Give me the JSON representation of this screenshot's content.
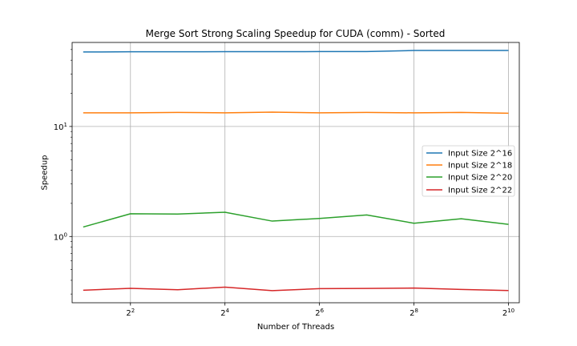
{
  "chart_data": {
    "type": "line",
    "title": "Merge Sort Strong Scaling Speedup for CUDA (comm) - Sorted",
    "xlabel": "Number of Threads",
    "ylabel": "Speedup",
    "x_scale": "log2",
    "y_scale": "log10",
    "x": [
      2,
      4,
      8,
      16,
      32,
      64,
      128,
      256,
      512,
      1024
    ],
    "xlim": [
      1.7,
      1200
    ],
    "ylim": [
      0.25,
      58
    ],
    "x_ticks": [
      {
        "value": 4,
        "base": "2",
        "exp": "2"
      },
      {
        "value": 16,
        "base": "2",
        "exp": "4"
      },
      {
        "value": 64,
        "base": "2",
        "exp": "6"
      },
      {
        "value": 256,
        "base": "2",
        "exp": "8"
      },
      {
        "value": 1024,
        "base": "2",
        "exp": "10"
      }
    ],
    "y_ticks": [
      {
        "value": 1,
        "base": "10",
        "exp": "0"
      },
      {
        "value": 10,
        "base": "10",
        "exp": "1"
      }
    ],
    "grid": true,
    "legend_position": "center-right",
    "series": [
      {
        "name": "Input Size 2^16",
        "color": "#1f77b4",
        "values": [
          47.5,
          47.7,
          47.7,
          47.8,
          47.8,
          47.9,
          47.9,
          49.0,
          49.0,
          49.0
        ]
      },
      {
        "name": "Input Size 2^18",
        "color": "#ff7f0e",
        "values": [
          13.3,
          13.3,
          13.4,
          13.3,
          13.5,
          13.3,
          13.4,
          13.3,
          13.4,
          13.2
        ]
      },
      {
        "name": "Input Size 2^20",
        "color": "#2ca02c",
        "values": [
          1.22,
          1.61,
          1.6,
          1.66,
          1.38,
          1.46,
          1.57,
          1.32,
          1.45,
          1.29
        ]
      },
      {
        "name": "Input Size 2^22",
        "color": "#d62728",
        "values": [
          0.325,
          0.338,
          0.328,
          0.347,
          0.322,
          0.336,
          0.337,
          0.34,
          0.33,
          0.323
        ]
      }
    ]
  }
}
